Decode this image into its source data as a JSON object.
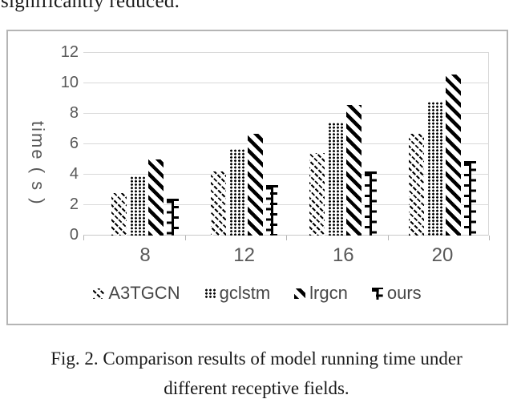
{
  "page": {
    "top_text": "significantly reduced.",
    "caption_line1": "Fig. 2. Comparison results of model running time under",
    "caption_line2": "different receptive fields."
  },
  "chart_data": {
    "type": "bar",
    "title": "",
    "categories": [
      "8",
      "12",
      "16",
      "20"
    ],
    "series": [
      {
        "name": "A3TGCN",
        "pattern": "thin-diagonal-stripes",
        "values": [
          2.8,
          4.2,
          5.4,
          6.7
        ]
      },
      {
        "name": "gclstm",
        "pattern": "dotted",
        "values": [
          3.9,
          5.7,
          7.4,
          8.8
        ]
      },
      {
        "name": "lrgcn",
        "pattern": "bold-diagonal-stripes",
        "values": [
          5.0,
          6.7,
          8.6,
          10.6
        ]
      },
      {
        "name": "ours",
        "pattern": "ladder",
        "values": [
          2.4,
          3.3,
          4.2,
          4.9
        ]
      }
    ],
    "xlabel": "",
    "ylabel": "time ( s )",
    "ylim": [
      0,
      12
    ],
    "yticks": [
      0,
      2,
      4,
      6,
      8,
      10,
      12
    ],
    "grid": true,
    "legend_position": "bottom",
    "bar_color": "#000000",
    "axis_text_color": "#595959",
    "gridline_color": "#d9d9d9"
  }
}
